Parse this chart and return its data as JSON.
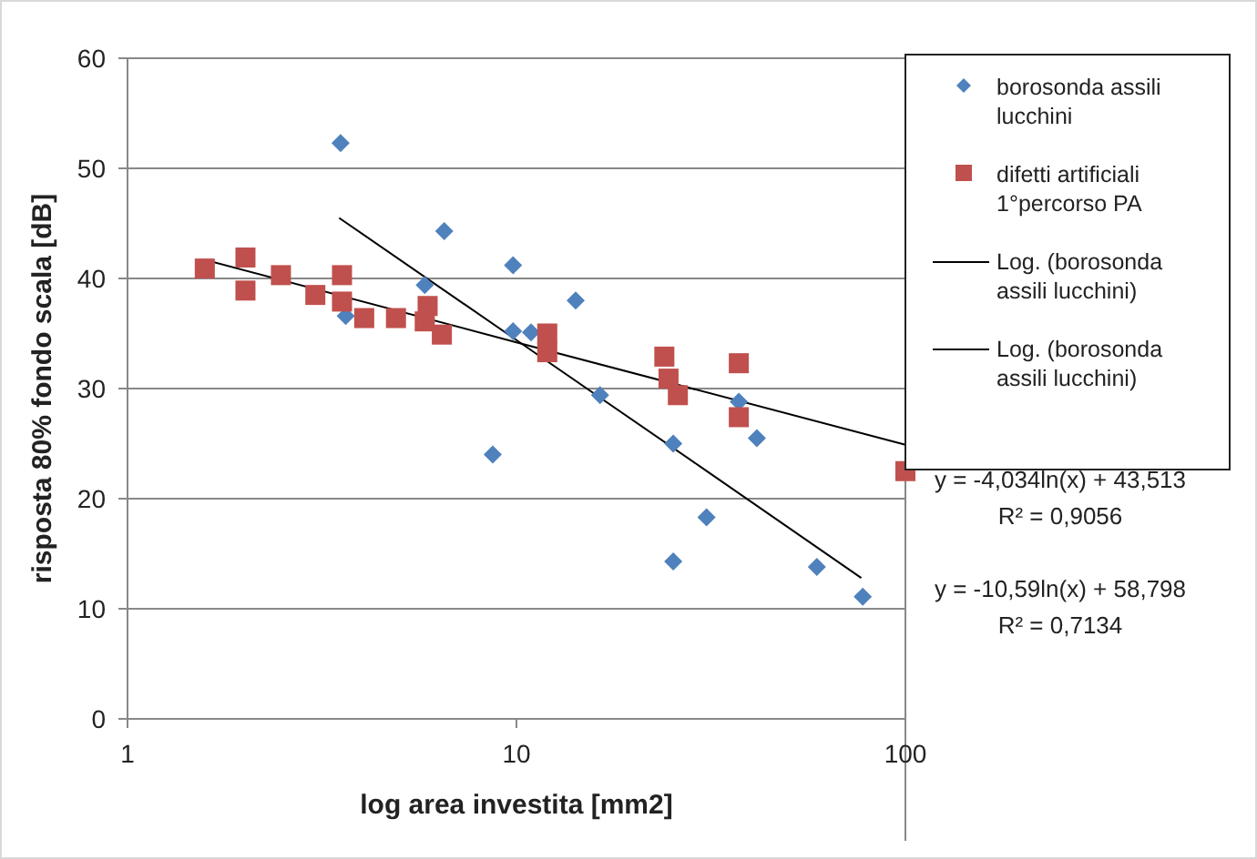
{
  "chart_data": {
    "type": "scatter",
    "xlabel": "log area investita [mm2]",
    "ylabel": "risposta 80% fondo scala [dB]",
    "log": "x",
    "xlim": [
      1,
      100
    ],
    "xticks": [
      1,
      10,
      100
    ],
    "ylim": [
      0,
      60
    ],
    "yticks": [
      0,
      10,
      20,
      30,
      40,
      50,
      60
    ],
    "grid": "y",
    "legend": "right",
    "series": [
      {
        "name": "borosonda assili lucchini",
        "marker": "diamond",
        "color": "#4f81bd",
        "x": [
          3.53,
          3.64,
          5.81,
          6.52,
          9.8,
          9.8,
          10.9,
          8.69,
          14.2,
          16.4,
          25.3,
          25.3,
          30.8,
          37.3,
          41.5,
          59.2,
          77.7
        ],
        "values": [
          52.3,
          36.6,
          39.4,
          44.3,
          41.2,
          35.2,
          35.1,
          24.0,
          38.0,
          29.4,
          25.0,
          14.3,
          18.3,
          28.8,
          25.5,
          13.8,
          11.1
        ]
      },
      {
        "name": "difetti artificiali 1°percorso PA",
        "marker": "square",
        "color": "#c0504d",
        "x": [
          1.58,
          2.01,
          2.01,
          2.48,
          3.04,
          3.56,
          3.56,
          4.06,
          4.9,
          5.91,
          5.81,
          6.43,
          12.0,
          12.0,
          24.0,
          24.6,
          26.0,
          37.3,
          37.3,
          100
        ],
        "values": [
          40.9,
          41.9,
          38.9,
          40.3,
          38.5,
          40.3,
          37.9,
          36.4,
          36.4,
          37.5,
          36.1,
          34.9,
          35.0,
          33.3,
          32.9,
          30.9,
          29.4,
          32.3,
          27.4,
          22.5
        ]
      },
      {
        "name": "Log. (borosonda assili lucchini)",
        "type": "line",
        "marker": "none",
        "color": "#000000",
        "x": [
          3.5,
          10,
          30,
          77
        ],
        "values": [
          45.5,
          34.4,
          22.8,
          12.8
        ]
      },
      {
        "name": "Log. (borosonda assili lucchini)",
        "type": "line",
        "marker": "none",
        "color": "#000000",
        "x": [
          1.58,
          10,
          100
        ],
        "values": [
          41.7,
          34.2,
          24.9
        ]
      }
    ],
    "annotations": [
      "y = -4,034ln(x) + 43,513",
      "R² = 0,9056",
      "y = -10,59ln(x) + 58,798",
      "R² = 0,7134"
    ]
  }
}
